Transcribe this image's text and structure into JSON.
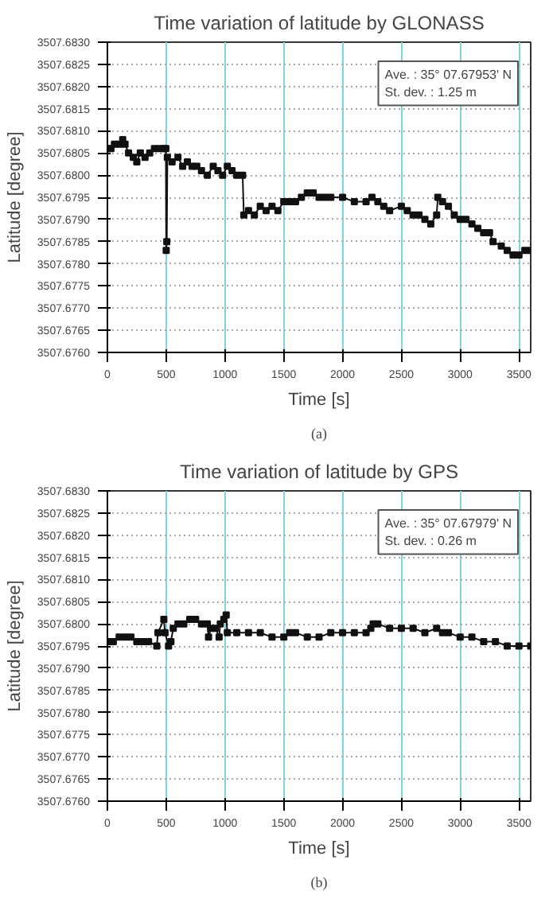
{
  "chart_data": [
    {
      "type": "line",
      "title": "Time variation of latitude by GLONASS",
      "xlabel": "Time [s]",
      "ylabel": "Latitude [degree]",
      "annotations": [
        "Ave. : 35° 07.67953' N",
        "St. dev. : 1.25 m",
        "(a)"
      ],
      "marker": "square",
      "grid": true,
      "xlim": [
        0,
        3600
      ],
      "xticks": [
        0,
        500,
        1000,
        1500,
        2000,
        2500,
        3000,
        3500
      ],
      "ylim": [
        3507.676,
        3507.683
      ],
      "yticks": [
        {
          "value": 3507.676,
          "label": "3507.6760"
        },
        {
          "value": 3507.6765,
          "label": "3507.6765"
        },
        {
          "value": 3507.677,
          "label": "3507.6770"
        },
        {
          "value": 3507.6775,
          "label": "3507.6775"
        },
        {
          "value": 3507.678,
          "label": "3507.6780"
        },
        {
          "value": 3507.6785,
          "label": "3507.6785"
        },
        {
          "value": 3507.679,
          "label": "3507.6790"
        },
        {
          "value": 3507.6795,
          "label": "3507.6795"
        },
        {
          "value": 3507.68,
          "label": "3507.6800"
        },
        {
          "value": 3507.6805,
          "label": "3507.6805"
        },
        {
          "value": 3507.681,
          "label": "3507.6810"
        },
        {
          "value": 3507.6815,
          "label": "3507.6815"
        },
        {
          "value": 3507.682,
          "label": "3507.6820"
        },
        {
          "value": 3507.6825,
          "label": "3507.6825"
        },
        {
          "value": 3507.683,
          "label": "3507.6830"
        }
      ],
      "x": [
        0,
        30,
        60,
        100,
        130,
        150,
        180,
        220,
        250,
        280,
        320,
        360,
        400,
        440,
        480,
        497,
        500,
        505,
        510,
        550,
        600,
        640,
        680,
        720,
        760,
        800,
        850,
        900,
        940,
        980,
        1020,
        1060,
        1100,
        1150,
        1160,
        1200,
        1250,
        1300,
        1350,
        1400,
        1450,
        1500,
        1550,
        1600,
        1650,
        1700,
        1750,
        1800,
        1850,
        1900,
        2000,
        2100,
        2200,
        2250,
        2300,
        2350,
        2400,
        2500,
        2550,
        2600,
        2650,
        2700,
        2750,
        2800,
        2810,
        2850,
        2900,
        2950,
        3000,
        3050,
        3100,
        3150,
        3200,
        3250,
        3280,
        3350,
        3400,
        3450,
        3500,
        3550,
        3600
      ],
      "series": [
        {
          "color": "#111111",
          "values": [
            3507.6806,
            3507.6806,
            3507.6807,
            3507.6807,
            3507.6808,
            3507.6807,
            3507.6805,
            3507.6804,
            3507.6803,
            3507.6805,
            3507.6804,
            3507.6805,
            3507.6806,
            3507.6806,
            3507.6806,
            3507.6806,
            3507.6783,
            3507.6785,
            3507.6804,
            3507.6803,
            3507.6804,
            3507.6802,
            3507.6803,
            3507.6802,
            3507.6802,
            3507.6801,
            3507.68,
            3507.6802,
            3507.6801,
            3507.68,
            3507.6802,
            3507.6801,
            3507.68,
            3507.68,
            3507.6791,
            3507.6792,
            3507.6791,
            3507.6793,
            3507.6792,
            3507.6793,
            3507.6792,
            3507.6794,
            3507.6794,
            3507.6794,
            3507.6795,
            3507.6796,
            3507.6796,
            3507.6795,
            3507.6795,
            3507.6795,
            3507.6795,
            3507.6794,
            3507.6794,
            3507.6795,
            3507.6794,
            3507.6793,
            3507.6792,
            3507.6793,
            3507.6792,
            3507.6791,
            3507.6791,
            3507.679,
            3507.6789,
            3507.6791,
            3507.6795,
            3507.6794,
            3507.6793,
            3507.6791,
            3507.679,
            3507.679,
            3507.6789,
            3507.6788,
            3507.6787,
            3507.6787,
            3507.6785,
            3507.6784,
            3507.6783,
            3507.6782,
            3507.6782,
            3507.6783,
            3507.6783
          ]
        }
      ]
    },
    {
      "type": "line",
      "title": "Time variation of latitude by GPS",
      "xlabel": "Time [s]",
      "ylabel": "Latitude [degree]",
      "annotations": [
        "Ave. : 35° 07.67979' N",
        "St. dev. : 0.26 m",
        "(b)"
      ],
      "marker": "square",
      "grid": true,
      "xlim": [
        0,
        3600
      ],
      "xticks": [
        0,
        500,
        1000,
        1500,
        2000,
        2500,
        3000,
        3500
      ],
      "ylim": [
        3507.676,
        3507.683
      ],
      "yticks": [
        {
          "value": 3507.676,
          "label": "3507.6760"
        },
        {
          "value": 3507.6765,
          "label": "3507.6765"
        },
        {
          "value": 3507.677,
          "label": "3507.6770"
        },
        {
          "value": 3507.6775,
          "label": "3507.6775"
        },
        {
          "value": 3507.678,
          "label": "3507.6780"
        },
        {
          "value": 3507.6785,
          "label": "3507.6785"
        },
        {
          "value": 3507.679,
          "label": "3507.6790"
        },
        {
          "value": 3507.6795,
          "label": "3507.6795"
        },
        {
          "value": 3507.68,
          "label": "3507.6800"
        },
        {
          "value": 3507.6805,
          "label": "3507.6805"
        },
        {
          "value": 3507.681,
          "label": "3507.6810"
        },
        {
          "value": 3507.6815,
          "label": "3507.6815"
        },
        {
          "value": 3507.682,
          "label": "3507.6820"
        },
        {
          "value": 3507.6825,
          "label": "3507.6825"
        },
        {
          "value": 3507.683,
          "label": "3507.6830"
        }
      ],
      "x": [
        0,
        50,
        100,
        150,
        200,
        250,
        300,
        350,
        420,
        430,
        480,
        490,
        520,
        540,
        560,
        600,
        650,
        700,
        750,
        800,
        850,
        860,
        880,
        920,
        950,
        960,
        990,
        1010,
        1020,
        1100,
        1200,
        1300,
        1400,
        1500,
        1550,
        1600,
        1700,
        1800,
        1900,
        2000,
        2100,
        2200,
        2240,
        2260,
        2300,
        2400,
        2500,
        2600,
        2700,
        2800,
        2850,
        2900,
        3000,
        3100,
        3200,
        3300,
        3400,
        3500,
        3600
      ],
      "series": [
        {
          "color": "#111111",
          "values": [
            3507.6796,
            3507.6796,
            3507.6797,
            3507.6797,
            3507.6797,
            3507.6796,
            3507.6796,
            3507.6796,
            3507.6795,
            3507.6798,
            3507.6801,
            3507.6798,
            3507.6795,
            3507.6796,
            3507.6799,
            3507.68,
            3507.68,
            3507.6801,
            3507.6801,
            3507.68,
            3507.68,
            3507.6797,
            3507.6799,
            3507.6799,
            3507.6797,
            3507.68,
            3507.6801,
            3507.6802,
            3507.6798,
            3507.6798,
            3507.6798,
            3507.6798,
            3507.6797,
            3507.6797,
            3507.6798,
            3507.6798,
            3507.6797,
            3507.6797,
            3507.6798,
            3507.6798,
            3507.6798,
            3507.6798,
            3507.6799,
            3507.68,
            3507.68,
            3507.6799,
            3507.6799,
            3507.6799,
            3507.6798,
            3507.6799,
            3507.6798,
            3507.6798,
            3507.6797,
            3507.6797,
            3507.6796,
            3507.6796,
            3507.6795,
            3507.6795,
            3507.6795
          ]
        }
      ]
    }
  ]
}
